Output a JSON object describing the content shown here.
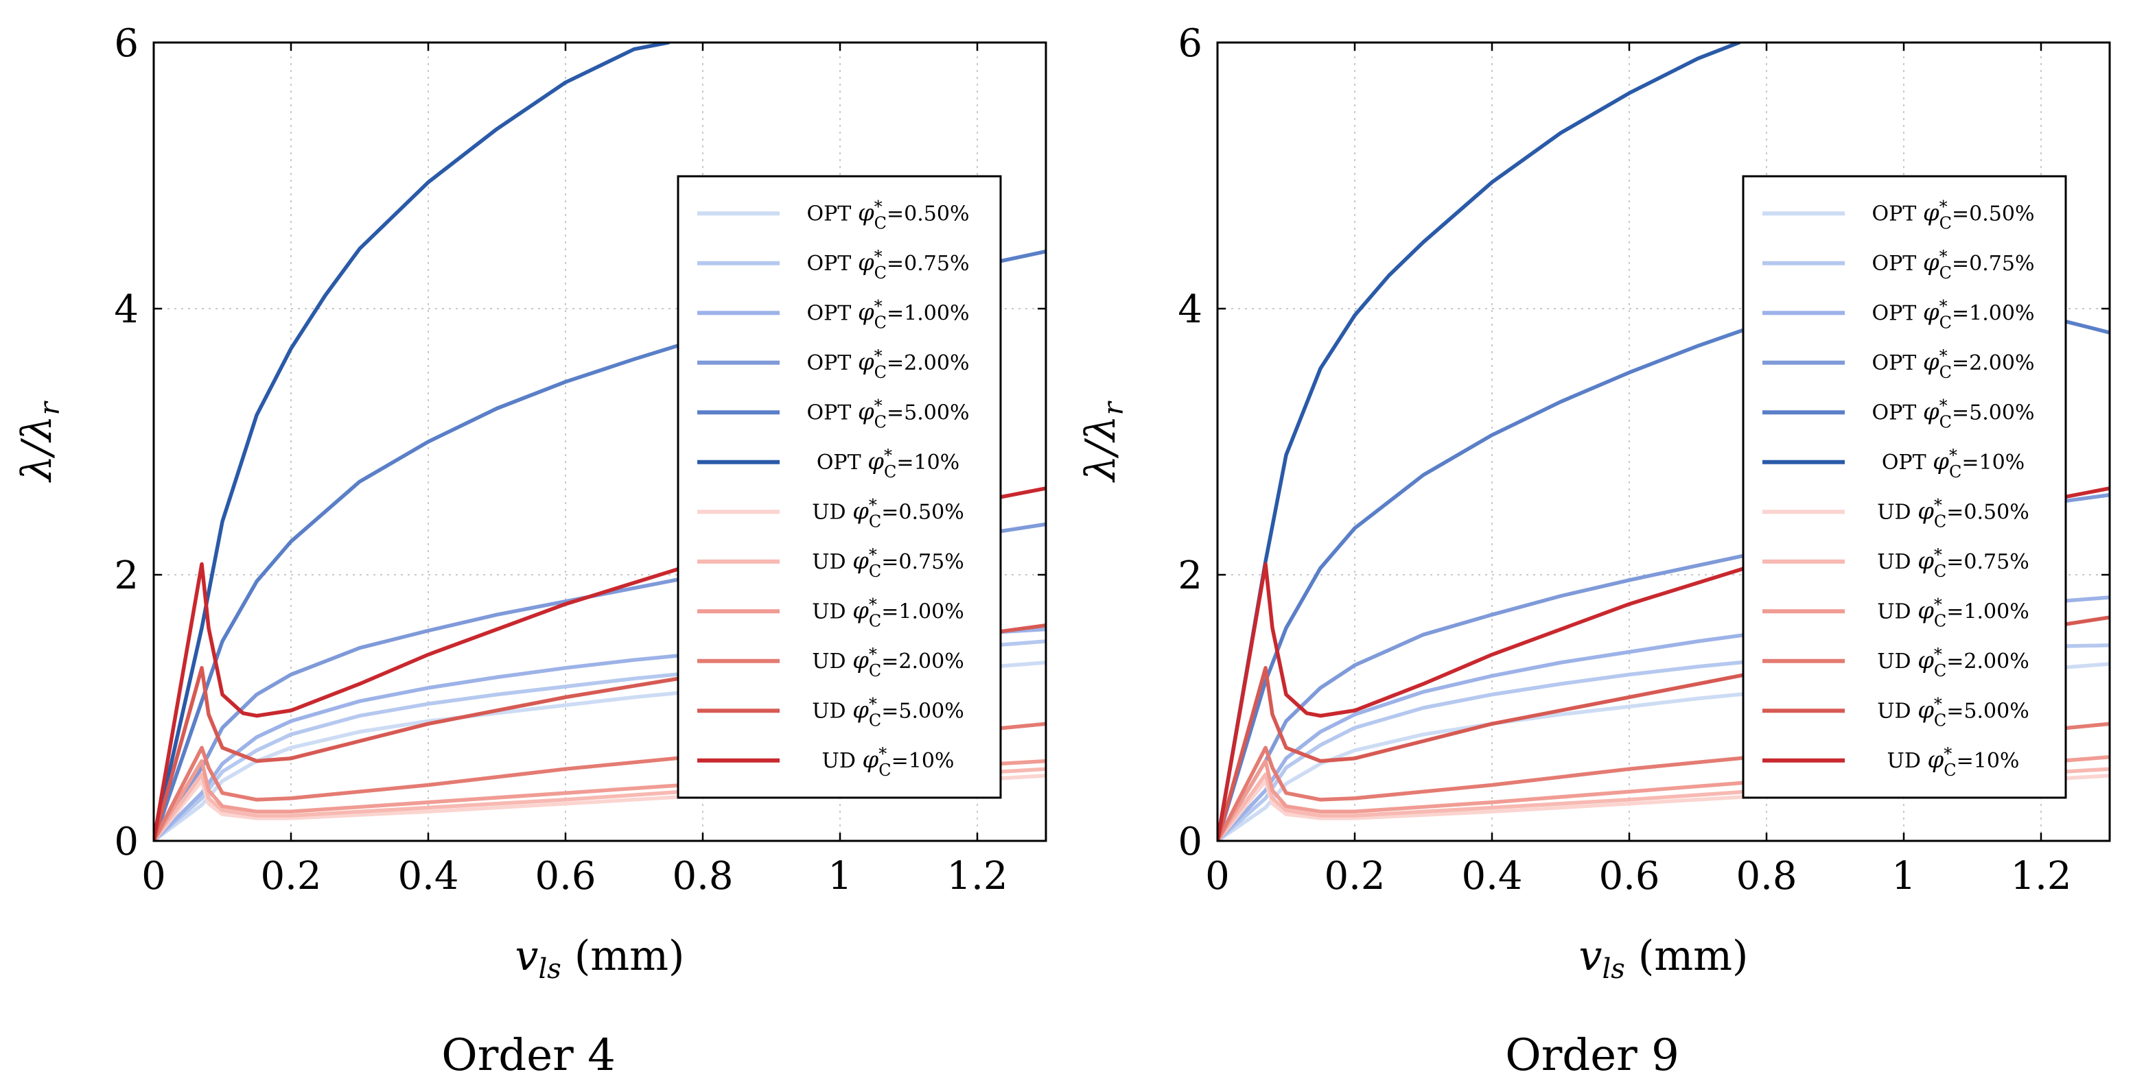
{
  "figure": {
    "captions": [
      "Order 4",
      "Order 9"
    ]
  },
  "chart_data": [
    {
      "type": "line",
      "caption": "Order 4",
      "xlabel": "v_ls (mm)",
      "ylabel": "λ/λ_r",
      "xlim": [
        0,
        1.3
      ],
      "ylim": [
        0,
        6
      ],
      "xticks": [
        0,
        0.2,
        0.4,
        0.6,
        0.8,
        1,
        1.2
      ],
      "yticks": [
        0,
        2,
        4,
        6
      ],
      "xtick_labels": [
        "0",
        "0.2",
        "0.4",
        "0.6",
        "0.8",
        "1",
        "1.2"
      ],
      "ytick_labels": [
        "0",
        "2",
        "4",
        "6"
      ],
      "grid": true,
      "legend_position": "right, centered vertically",
      "series": [
        {
          "name": "OPT φ*C=0.50%",
          "legend_prefix": "OPT",
          "legend_value": "=0.50%",
          "color": "#cddcf4",
          "x": [
            0,
            0.07,
            0.1,
            0.15,
            0.2,
            0.3,
            0.4,
            0.5,
            0.6,
            0.7,
            0.8,
            0.9,
            1.0,
            1.1,
            1.2,
            1.3
          ],
          "y": [
            0,
            0.27,
            0.45,
            0.6,
            0.7,
            0.82,
            0.9,
            0.96,
            1.02,
            1.08,
            1.13,
            1.18,
            1.22,
            1.26,
            1.3,
            1.34
          ]
        },
        {
          "name": "OPT φ*C=0.75%",
          "legend_prefix": "OPT",
          "legend_value": "=0.75%",
          "color": "#b5c8ef",
          "x": [
            0,
            0.07,
            0.1,
            0.15,
            0.2,
            0.3,
            0.4,
            0.5,
            0.6,
            0.7,
            0.8,
            0.9,
            1.0,
            1.1,
            1.2,
            1.3
          ],
          "y": [
            0,
            0.32,
            0.52,
            0.68,
            0.8,
            0.94,
            1.03,
            1.1,
            1.16,
            1.22,
            1.27,
            1.32,
            1.37,
            1.42,
            1.46,
            1.5
          ]
        },
        {
          "name": "OPT φ*C=1.00%",
          "legend_prefix": "OPT",
          "legend_value": "=1.00%",
          "color": "#9cb2e8",
          "x": [
            0,
            0.07,
            0.1,
            0.15,
            0.2,
            0.3,
            0.4,
            0.5,
            0.6,
            0.7,
            0.8,
            0.9,
            1.0,
            1.1,
            1.2,
            1.3
          ],
          "y": [
            0,
            0.36,
            0.58,
            0.78,
            0.9,
            1.05,
            1.15,
            1.23,
            1.3,
            1.36,
            1.41,
            1.46,
            1.5,
            1.53,
            1.56,
            1.59
          ]
        },
        {
          "name": "OPT φ*C=2.00%",
          "legend_prefix": "OPT",
          "legend_value": "=2.00%",
          "color": "#7f9ad9",
          "x": [
            0,
            0.07,
            0.1,
            0.15,
            0.2,
            0.3,
            0.4,
            0.5,
            0.6,
            0.7,
            0.8,
            0.9,
            1.0,
            1.1,
            1.2,
            1.3
          ],
          "y": [
            0,
            0.55,
            0.85,
            1.1,
            1.25,
            1.45,
            1.58,
            1.7,
            1.8,
            1.9,
            2.0,
            2.08,
            2.15,
            2.22,
            2.3,
            2.38
          ]
        },
        {
          "name": "OPT φ*C=5.00%",
          "legend_prefix": "OPT",
          "legend_value": "=5.00%",
          "color": "#5a7fc8",
          "x": [
            0,
            0.07,
            0.1,
            0.15,
            0.2,
            0.3,
            0.4,
            0.5,
            0.6,
            0.7,
            0.8,
            0.9,
            1.0,
            1.1,
            1.2,
            1.3
          ],
          "y": [
            0,
            1.05,
            1.5,
            1.95,
            2.25,
            2.7,
            3.0,
            3.25,
            3.45,
            3.62,
            3.78,
            3.93,
            4.07,
            4.2,
            4.32,
            4.43
          ]
        },
        {
          "name": "OPT φ*C=10%",
          "legend_prefix": "OPT",
          "legend_value": "=10%",
          "color": "#2a5aa8",
          "x": [
            0,
            0.07,
            0.1,
            0.15,
            0.2,
            0.25,
            0.3,
            0.4,
            0.5,
            0.6,
            0.7,
            0.75
          ],
          "y": [
            0,
            1.6,
            2.4,
            3.2,
            3.7,
            4.1,
            4.45,
            4.95,
            5.35,
            5.7,
            5.95,
            6.0
          ]
        },
        {
          "name": "UD φ*C=0.50%",
          "legend_prefix": "UD",
          "legend_value": "=0.50%",
          "color": "#fbd4d0",
          "x": [
            0,
            0.07,
            0.08,
            0.1,
            0.15,
            0.2,
            0.4,
            0.6,
            0.8,
            1.0,
            1.2,
            1.3
          ],
          "y": [
            0,
            0.45,
            0.28,
            0.2,
            0.17,
            0.17,
            0.22,
            0.28,
            0.34,
            0.4,
            0.46,
            0.49
          ]
        },
        {
          "name": "UD φ*C=0.75%",
          "legend_prefix": "UD",
          "legend_value": "=0.75%",
          "color": "#f7b9b2",
          "x": [
            0,
            0.07,
            0.08,
            0.1,
            0.15,
            0.2,
            0.4,
            0.6,
            0.8,
            1.0,
            1.2,
            1.3
          ],
          "y": [
            0,
            0.5,
            0.32,
            0.23,
            0.19,
            0.19,
            0.25,
            0.31,
            0.38,
            0.45,
            0.51,
            0.54
          ]
        },
        {
          "name": "UD φ*C=1.00%",
          "legend_prefix": "UD",
          "legend_value": "=1.00%",
          "color": "#f09c94",
          "x": [
            0,
            0.07,
            0.08,
            0.1,
            0.15,
            0.2,
            0.4,
            0.6,
            0.8,
            1.0,
            1.2,
            1.3
          ],
          "y": [
            0,
            0.6,
            0.38,
            0.26,
            0.22,
            0.22,
            0.29,
            0.36,
            0.43,
            0.5,
            0.57,
            0.6
          ]
        },
        {
          "name": "UD φ*C=2.00%",
          "legend_prefix": "UD",
          "legend_value": "=2.00%",
          "color": "#e47b72",
          "x": [
            0,
            0.07,
            0.08,
            0.1,
            0.15,
            0.2,
            0.4,
            0.6,
            0.8,
            1.0,
            1.2,
            1.3
          ],
          "y": [
            0,
            0.7,
            0.55,
            0.36,
            0.31,
            0.32,
            0.42,
            0.54,
            0.64,
            0.74,
            0.83,
            0.88
          ]
        },
        {
          "name": "UD φ*C=5.00%",
          "legend_prefix": "UD",
          "legend_value": "=5.00%",
          "color": "#d65a53",
          "x": [
            0,
            0.07,
            0.08,
            0.1,
            0.15,
            0.2,
            0.3,
            0.4,
            0.6,
            0.8,
            1.0,
            1.2,
            1.3
          ],
          "y": [
            0,
            1.3,
            0.95,
            0.7,
            0.6,
            0.62,
            0.75,
            0.88,
            1.08,
            1.25,
            1.4,
            1.55,
            1.62
          ]
        },
        {
          "name": "UD φ*C=10%",
          "legend_prefix": "UD",
          "legend_value": "=10%",
          "color": "#c8282e",
          "x": [
            0,
            0.07,
            0.08,
            0.1,
            0.13,
            0.15,
            0.2,
            0.3,
            0.4,
            0.6,
            0.8,
            1.0,
            1.2,
            1.3
          ],
          "y": [
            0,
            2.08,
            1.6,
            1.1,
            0.96,
            0.94,
            0.98,
            1.18,
            1.4,
            1.78,
            2.1,
            2.35,
            2.55,
            2.65
          ]
        }
      ]
    },
    {
      "type": "line",
      "caption": "Order 9",
      "xlabel": "v_ls (mm)",
      "ylabel": "λ/λ_r",
      "xlim": [
        0,
        1.3
      ],
      "ylim": [
        0,
        6
      ],
      "xticks": [
        0,
        0.2,
        0.4,
        0.6,
        0.8,
        1,
        1.2
      ],
      "yticks": [
        0,
        2,
        4,
        6
      ],
      "xtick_labels": [
        "0",
        "0.2",
        "0.4",
        "0.6",
        "0.8",
        "1",
        "1.2"
      ],
      "ytick_labels": [
        "0",
        "2",
        "4",
        "6"
      ],
      "grid": true,
      "legend_position": "right, centered vertically",
      "series": [
        {
          "name": "OPT φ*C=0.50%",
          "legend_prefix": "OPT",
          "legend_value": "=0.50%",
          "color": "#cddcf4",
          "x": [
            0,
            0.07,
            0.1,
            0.15,
            0.2,
            0.3,
            0.4,
            0.5,
            0.6,
            0.7,
            0.8,
            0.9,
            1.0,
            1.1,
            1.2,
            1.3
          ],
          "y": [
            0,
            0.25,
            0.43,
            0.58,
            0.68,
            0.8,
            0.88,
            0.95,
            1.01,
            1.07,
            1.12,
            1.17,
            1.21,
            1.25,
            1.29,
            1.33
          ]
        },
        {
          "name": "OPT φ*C=0.75%",
          "legend_prefix": "OPT",
          "legend_value": "=0.75%",
          "color": "#b5c8ef",
          "x": [
            0,
            0.07,
            0.1,
            0.15,
            0.2,
            0.3,
            0.4,
            0.5,
            0.6,
            0.7,
            0.8,
            0.9,
            1.0,
            1.1,
            1.2,
            1.3
          ],
          "y": [
            0,
            0.32,
            0.55,
            0.72,
            0.85,
            1.0,
            1.1,
            1.18,
            1.25,
            1.31,
            1.36,
            1.4,
            1.43,
            1.45,
            1.46,
            1.47
          ]
        },
        {
          "name": "OPT φ*C=1.00%",
          "legend_prefix": "OPT",
          "legend_value": "=1.00%",
          "color": "#9cb2e8",
          "x": [
            0,
            0.07,
            0.1,
            0.15,
            0.2,
            0.3,
            0.4,
            0.5,
            0.6,
            0.7,
            0.8,
            0.9,
            1.0,
            1.1,
            1.2,
            1.3
          ],
          "y": [
            0,
            0.38,
            0.62,
            0.82,
            0.95,
            1.12,
            1.24,
            1.34,
            1.42,
            1.5,
            1.57,
            1.63,
            1.69,
            1.74,
            1.79,
            1.83
          ]
        },
        {
          "name": "OPT φ*C=2.00%",
          "legend_prefix": "OPT",
          "legend_value": "=2.00%",
          "color": "#7f9ad9",
          "x": [
            0,
            0.07,
            0.1,
            0.15,
            0.2,
            0.3,
            0.4,
            0.5,
            0.6,
            0.7,
            0.8,
            0.9,
            1.0,
            1.1,
            1.2,
            1.3
          ],
          "y": [
            0,
            0.6,
            0.9,
            1.15,
            1.32,
            1.55,
            1.7,
            1.84,
            1.96,
            2.07,
            2.18,
            2.28,
            2.37,
            2.45,
            2.53,
            2.6
          ]
        },
        {
          "name": "OPT φ*C=5.00%",
          "legend_prefix": "OPT",
          "legend_value": "=5.00%",
          "color": "#5a7fc8",
          "x": [
            0,
            0.07,
            0.1,
            0.15,
            0.2,
            0.3,
            0.4,
            0.5,
            0.6,
            0.7,
            0.8,
            0.9,
            1.0,
            1.1,
            1.2,
            1.3
          ],
          "y": [
            0,
            1.2,
            1.6,
            2.05,
            2.35,
            2.75,
            3.05,
            3.3,
            3.52,
            3.72,
            3.9,
            4.02,
            4.08,
            4.05,
            3.95,
            3.82
          ]
        },
        {
          "name": "OPT φ*C=10%",
          "legend_prefix": "OPT",
          "legend_value": "=10%",
          "color": "#2a5aa8",
          "x": [
            0,
            0.07,
            0.1,
            0.15,
            0.2,
            0.25,
            0.3,
            0.4,
            0.5,
            0.6,
            0.7,
            0.76
          ],
          "y": [
            0,
            2.1,
            2.9,
            3.55,
            3.95,
            4.25,
            4.5,
            4.95,
            5.32,
            5.62,
            5.88,
            6.0
          ]
        },
        {
          "name": "UD φ*C=0.50%",
          "legend_prefix": "UD",
          "legend_value": "=0.50%",
          "color": "#fbd4d0",
          "x": [
            0,
            0.07,
            0.08,
            0.1,
            0.15,
            0.2,
            0.4,
            0.6,
            0.8,
            1.0,
            1.2,
            1.3
          ],
          "y": [
            0,
            0.45,
            0.28,
            0.2,
            0.17,
            0.17,
            0.22,
            0.28,
            0.34,
            0.4,
            0.46,
            0.49
          ]
        },
        {
          "name": "UD φ*C=0.75%",
          "legend_prefix": "UD",
          "legend_value": "=0.75%",
          "color": "#f7b9b2",
          "x": [
            0,
            0.07,
            0.08,
            0.1,
            0.15,
            0.2,
            0.4,
            0.6,
            0.8,
            1.0,
            1.2,
            1.3
          ],
          "y": [
            0,
            0.5,
            0.32,
            0.23,
            0.19,
            0.19,
            0.25,
            0.31,
            0.38,
            0.45,
            0.51,
            0.54
          ]
        },
        {
          "name": "UD φ*C=1.00%",
          "legend_prefix": "UD",
          "legend_value": "=1.00%",
          "color": "#f09c94",
          "x": [
            0,
            0.07,
            0.08,
            0.1,
            0.15,
            0.2,
            0.4,
            0.6,
            0.8,
            1.0,
            1.2,
            1.3
          ],
          "y": [
            0,
            0.6,
            0.38,
            0.26,
            0.22,
            0.22,
            0.29,
            0.37,
            0.45,
            0.52,
            0.59,
            0.63
          ]
        },
        {
          "name": "UD φ*C=2.00%",
          "legend_prefix": "UD",
          "legend_value": "=2.00%",
          "color": "#e47b72",
          "x": [
            0,
            0.07,
            0.08,
            0.1,
            0.15,
            0.2,
            0.4,
            0.6,
            0.8,
            1.0,
            1.2,
            1.3
          ],
          "y": [
            0,
            0.7,
            0.55,
            0.36,
            0.31,
            0.32,
            0.42,
            0.54,
            0.64,
            0.74,
            0.83,
            0.88
          ]
        },
        {
          "name": "UD φ*C=5.00%",
          "legend_prefix": "UD",
          "legend_value": "=5.00%",
          "color": "#d65a53",
          "x": [
            0,
            0.07,
            0.08,
            0.1,
            0.15,
            0.2,
            0.3,
            0.4,
            0.6,
            0.8,
            1.0,
            1.2,
            1.3
          ],
          "y": [
            0,
            1.3,
            0.95,
            0.7,
            0.6,
            0.62,
            0.75,
            0.88,
            1.08,
            1.28,
            1.45,
            1.6,
            1.68
          ]
        },
        {
          "name": "UD φ*C=10%",
          "legend_prefix": "UD",
          "legend_value": "=10%",
          "color": "#c8282e",
          "x": [
            0,
            0.07,
            0.08,
            0.1,
            0.13,
            0.15,
            0.2,
            0.3,
            0.4,
            0.6,
            0.8,
            1.0,
            1.2,
            1.3
          ],
          "y": [
            0,
            2.08,
            1.6,
            1.1,
            0.96,
            0.94,
            0.98,
            1.18,
            1.4,
            1.78,
            2.1,
            2.35,
            2.55,
            2.65
          ]
        }
      ]
    }
  ]
}
